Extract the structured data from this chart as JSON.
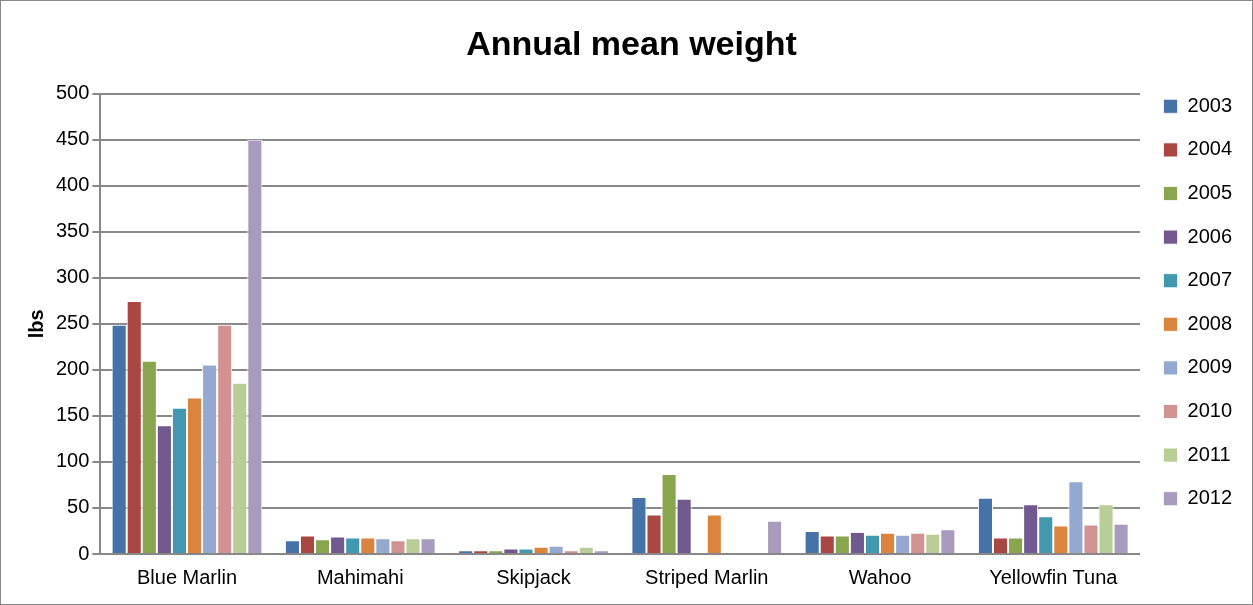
{
  "chart_data": {
    "type": "bar",
    "title": "Annual mean weight",
    "ylabel": "lbs",
    "categories": [
      "Blue Marlin",
      "Mahimahi",
      "Skipjack",
      "Striped Marlin",
      "Wahoo",
      "Yellowfin Tuna"
    ],
    "series": [
      {
        "name": "2003",
        "color": "#4572a7",
        "values": [
          249,
          15,
          4,
          62,
          25,
          61
        ]
      },
      {
        "name": "2004",
        "color": "#aa4643",
        "values": [
          275,
          20,
          4,
          43,
          20,
          18
        ]
      },
      {
        "name": "2005",
        "color": "#89a54e",
        "values": [
          210,
          16,
          4,
          87,
          20,
          18
        ]
      },
      {
        "name": "2006",
        "color": "#71588f",
        "values": [
          140,
          19,
          6,
          60,
          24,
          54
        ]
      },
      {
        "name": "2007",
        "color": "#4198af",
        "values": [
          159,
          18,
          6,
          null,
          21,
          41
        ]
      },
      {
        "name": "2008",
        "color": "#db843d",
        "values": [
          170,
          18,
          8,
          43,
          23,
          31
        ]
      },
      {
        "name": "2009",
        "color": "#93a9cf",
        "values": [
          206,
          17,
          9,
          null,
          21,
          79
        ]
      },
      {
        "name": "2010",
        "color": "#d19392",
        "values": [
          249,
          15,
          4,
          null,
          23,
          32
        ]
      },
      {
        "name": "2011",
        "color": "#b9cd96",
        "values": [
          186,
          17,
          8,
          null,
          22,
          54
        ]
      },
      {
        "name": "2012",
        "color": "#a99bbd",
        "values": [
          450,
          17,
          4,
          36,
          27,
          33
        ]
      }
    ],
    "ylim": [
      0,
      500
    ],
    "yticks": [
      0,
      50,
      100,
      150,
      200,
      250,
      300,
      350,
      400,
      450,
      500
    ],
    "grid": "y",
    "legend": "right"
  }
}
